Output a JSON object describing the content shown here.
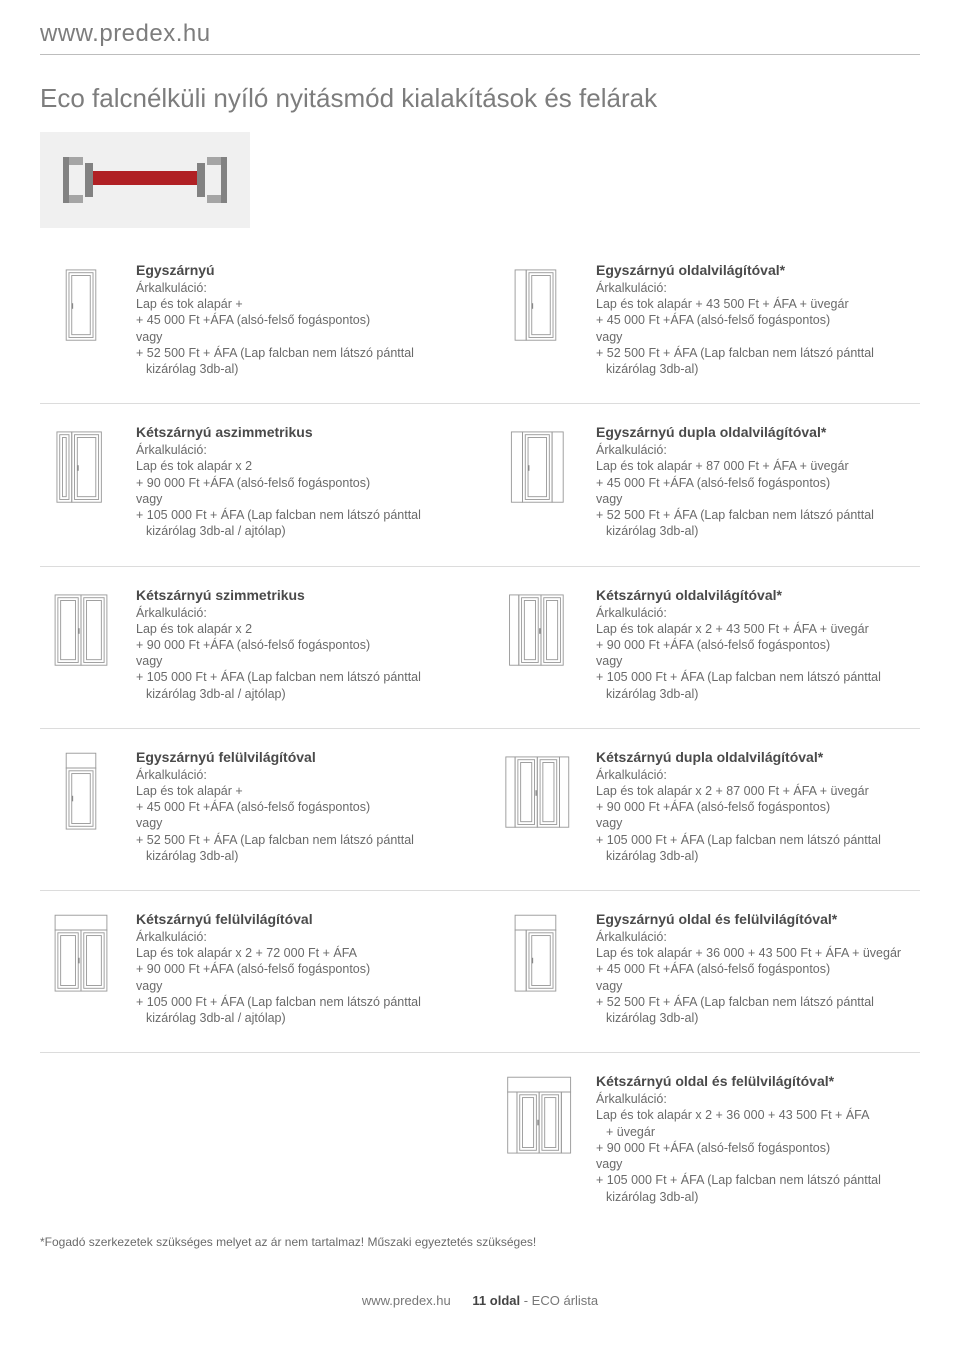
{
  "header": {
    "url": "www.predex.hu"
  },
  "page_title": "Eco falcnélküli nyíló nyitásmód kialakítások és felárak",
  "calc_label": "Árkalkuláció:",
  "or_label": "vagy",
  "hero": {
    "bg": "#f0f0f0",
    "bar_color": "#b02024",
    "frame_color": "#828282"
  },
  "items": [
    {
      "title": "Egyszárnyú",
      "lines": [
        "Lap és tok alapár +",
        "+ 45 000 Ft +ÁFA (alsó-felső fogáspontos)",
        "vagy",
        "+ 52 500 Ft + ÁFA (Lap falcban nem látszó pánttal",
        "kizárólag 3db-al)"
      ],
      "icon": "single"
    },
    {
      "title": "Egyszárnyú oldalvilágítóval*",
      "lines": [
        "Lap és tok alapár + 43 500 Ft + ÁFA + üvegár",
        "+ 45 000 Ft +ÁFA (alsó-felső fogáspontos)",
        "vagy",
        "+ 52 500 Ft + ÁFA (Lap falcban nem látszó pánttal",
        "kizárólag 3db-al)"
      ],
      "icon": "single-side"
    },
    {
      "title": "Kétszárnyú aszimmetrikus",
      "lines": [
        "Lap és tok alapár x 2",
        "+ 90 000 Ft +ÁFA (alsó-felső fogáspontos)",
        "vagy",
        "+ 105 000 Ft + ÁFA (Lap falcban nem látszó pánttal",
        "kizárólag 3db-al / ajtólap)"
      ],
      "icon": "double-asym"
    },
    {
      "title": "Egyszárnyú dupla oldalvilágítóval*",
      "lines": [
        "Lap és tok alapár + 87 000 Ft + ÁFA + üvegár",
        "+ 45 000 Ft +ÁFA (alsó-felső fogáspontos)",
        "vagy",
        "+ 52 500 Ft + ÁFA (Lap falcban nem látszó pánttal",
        "kizárólag 3db-al)"
      ],
      "icon": "single-side2"
    },
    {
      "title": "Kétszárnyú szimmetrikus",
      "lines": [
        "Lap és tok alapár x 2",
        "+ 90 000 Ft +ÁFA (alsó-felső fogáspontos)",
        "vagy",
        "+ 105 000 Ft + ÁFA (Lap falcban nem látszó pánttal",
        "kizárólag 3db-al / ajtólap)"
      ],
      "icon": "double-sym"
    },
    {
      "title": "Kétszárnyú oldalvilágítóval*",
      "lines": [
        "Lap és tok alapár x 2 + 43 500 Ft + ÁFA + üvegár",
        "+ 90 000 Ft +ÁFA (alsó-felső fogáspontos)",
        "vagy",
        "+ 105 000 Ft + ÁFA (Lap falcban nem látszó pánttal",
        "kizárólag 3db-al)"
      ],
      "icon": "double-side"
    },
    {
      "title": "Egyszárnyú felülvilágítóval",
      "lines": [
        "Lap és tok alapár +",
        "+ 45 000 Ft +ÁFA (alsó-felső fogáspontos)",
        "vagy",
        "+ 52 500 Ft + ÁFA (Lap falcban nem látszó pánttal",
        "kizárólag 3db-al)"
      ],
      "icon": "single-top"
    },
    {
      "title": "Kétszárnyú dupla oldalvilágítóval*",
      "lines": [
        "Lap és tok alapár x 2 + 87 000 Ft + ÁFA + üvegár",
        "+ 90 000 Ft +ÁFA (alsó-felső fogáspontos)",
        "vagy",
        "+ 105 000 Ft + ÁFA (Lap falcban nem látszó pánttal",
        "kizárólag 3db-al)"
      ],
      "icon": "double-side2"
    },
    {
      "title": "Kétszárnyú felülvilágítóval",
      "lines": [
        "Lap és tok alapár x 2 + 72 000 Ft + ÁFA",
        "+ 90 000 Ft +ÁFA (alsó-felső fogáspontos)",
        "vagy",
        "+ 105 000 Ft + ÁFA (Lap falcban nem látszó pánttal",
        "kizárólag 3db-al / ajtólap)"
      ],
      "icon": "double-top"
    },
    {
      "title": "Egyszárnyú oldal és felülvilágítóval*",
      "lines": [
        "Lap és tok alapár + 36 000 + 43 500 Ft + ÁFA + üvegár",
        "+ 45 000 Ft +ÁFA (alsó-felső fogáspontos)",
        "vagy",
        "+ 52 500 Ft + ÁFA (Lap falcban nem látszó pánttal",
        "kizárólag 3db-al)"
      ],
      "icon": "single-side-top"
    },
    {
      "title": "Kétszárnyú oldal és felülvilágítóval*",
      "lines": [
        "Lap és tok alapár x 2 + 36 000 + 43 500 Ft + ÁFA",
        "+ üvegár",
        "+ 90 000 Ft +ÁFA (alsó-felső fogáspontos)",
        "vagy",
        "+ 105 000 Ft + ÁFA (Lap falcban nem látszó pánttal",
        "kizárólag 3db-al)"
      ],
      "icon": "double-side-top",
      "col": 2
    }
  ],
  "footnote": "*Fogadó szerkezetek szükséges melyet az ár nem tartalmaz! Műszaki egyeztetés szükséges!",
  "footer": {
    "url": "www.predex.hu",
    "page": "11 oldal",
    "suffix": " - ECO árlista"
  }
}
